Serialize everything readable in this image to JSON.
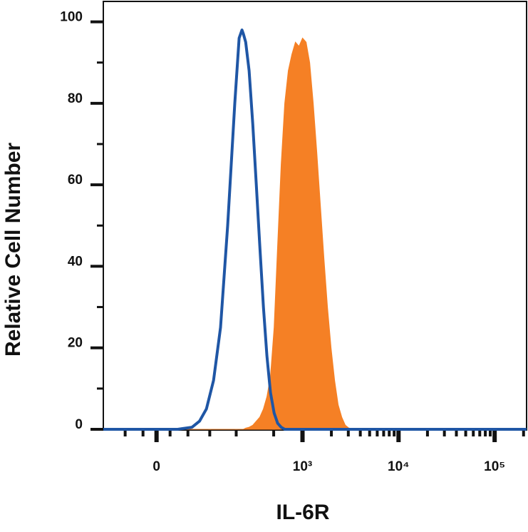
{
  "chart_data": {
    "type": "histogram-overlay",
    "xlabel": "IL-6R",
    "ylabel": "Relative Cell Number",
    "xscale": "biexponential",
    "xlim": [
      -100,
      215000
    ],
    "ylim": [
      0,
      105
    ],
    "xticks": [
      {
        "value": 0,
        "label": "0"
      },
      {
        "value": 1000,
        "label": "10³"
      },
      {
        "value": 10000,
        "label": "10⁴"
      },
      {
        "value": 100000,
        "label": "10⁵"
      }
    ],
    "xminorticks": [
      -50,
      -20,
      20,
      50,
      100,
      200,
      500,
      2000,
      3000,
      4000,
      5000,
      6000,
      7000,
      8000,
      9000,
      20000,
      30000,
      40000,
      50000,
      60000,
      70000,
      80000,
      90000,
      200000
    ],
    "yticks": [
      0,
      20,
      40,
      60,
      80,
      100
    ],
    "yminorticks": [
      10,
      30,
      50,
      70,
      90
    ],
    "x": [
      -100,
      -21,
      32,
      58,
      74,
      91,
      111,
      134,
      161,
      193,
      215,
      231,
      239,
      253,
      275,
      301,
      328,
      357,
      390,
      425,
      463,
      505,
      550,
      599,
      653,
      711,
      774,
      844,
      919,
      1001,
      1091,
      1188,
      1294,
      1410,
      1535,
      1671,
      1822,
      1984,
      2160,
      2353,
      2562,
      2790,
      3039,
      3606,
      8450,
      19800,
      46500,
      109000,
      215000
    ],
    "series": [
      {
        "color": "#f58025",
        "style": "filled",
        "values": [
          0,
          0,
          0,
          0,
          0,
          0,
          0,
          0,
          0,
          0,
          0,
          0,
          0,
          0.3,
          0.5,
          1,
          2,
          3,
          5,
          8,
          13,
          25,
          45,
          65,
          80,
          88,
          92,
          95,
          94,
          96,
          95,
          90,
          80,
          68,
          55,
          42,
          30,
          20,
          12,
          6,
          3,
          1,
          0.3,
          0,
          0,
          0,
          0,
          0,
          0
        ]
      },
      {
        "color": "#1f56a5",
        "style": "line",
        "values": [
          0,
          0,
          0,
          0.5,
          2,
          5,
          12,
          25,
          50,
          80,
          96,
          98,
          97,
          95,
          88,
          75,
          60,
          45,
          30,
          18,
          9,
          4,
          1.5,
          0.5,
          0,
          0,
          0,
          0,
          0,
          0,
          0,
          0,
          0,
          0,
          0,
          0,
          0,
          0,
          0,
          0,
          0,
          0,
          0,
          0,
          0,
          0,
          0,
          0,
          0
        ]
      }
    ]
  }
}
